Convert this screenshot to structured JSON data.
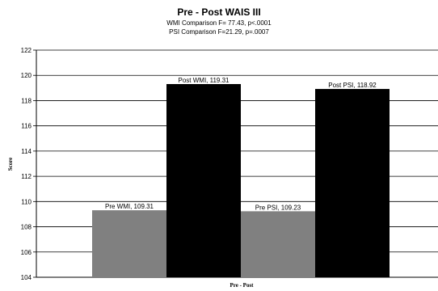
{
  "chart_data": {
    "type": "bar",
    "title": "Pre - Post WAIS III",
    "subtitle_lines": [
      "WMI Comparison F= 77.43,  p<.0001",
      "PSI Comparison F=21.29,   p=.0007"
    ],
    "xlabel": "Pre - Post",
    "ylabel": "Score",
    "ylim": [
      104,
      122
    ],
    "yticks": [
      104,
      106,
      108,
      110,
      112,
      114,
      116,
      118,
      120,
      122
    ],
    "grid": true,
    "bars": [
      {
        "label": "Pre WMI, 109.31",
        "value": 109.31,
        "color": "#808080"
      },
      {
        "label": "Post WMI, 119.31",
        "value": 119.31,
        "color": "#000000"
      },
      {
        "label": "Pre PSI, 109.23",
        "value": 109.23,
        "color": "#808080"
      },
      {
        "label": "Post PSI, 118.92",
        "value": 118.92,
        "color": "#000000"
      }
    ]
  }
}
